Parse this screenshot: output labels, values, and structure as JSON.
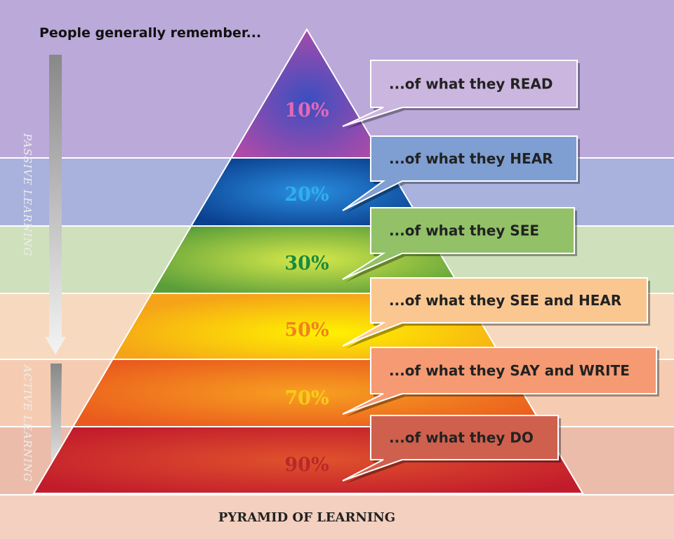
{
  "header": {
    "title": "People generally remember..."
  },
  "levels": [
    {
      "percent": "10%",
      "caption": "...of what they READ"
    },
    {
      "percent": "20%",
      "caption": "...of what they HEAR"
    },
    {
      "percent": "30%",
      "caption": "...of what they SEE"
    },
    {
      "percent": "50%",
      "caption": "...of what they SEE and HEAR"
    },
    {
      "percent": "70%",
      "caption": "...of what they SAY and WRITE"
    },
    {
      "percent": "90%",
      "caption": "...of what they DO"
    }
  ],
  "side_labels": {
    "passive": "PASSIVE LEARNING",
    "active": "ACTIVE LEARNING"
  },
  "footer": {
    "title": "PYRAMID OF LEARNING"
  }
}
